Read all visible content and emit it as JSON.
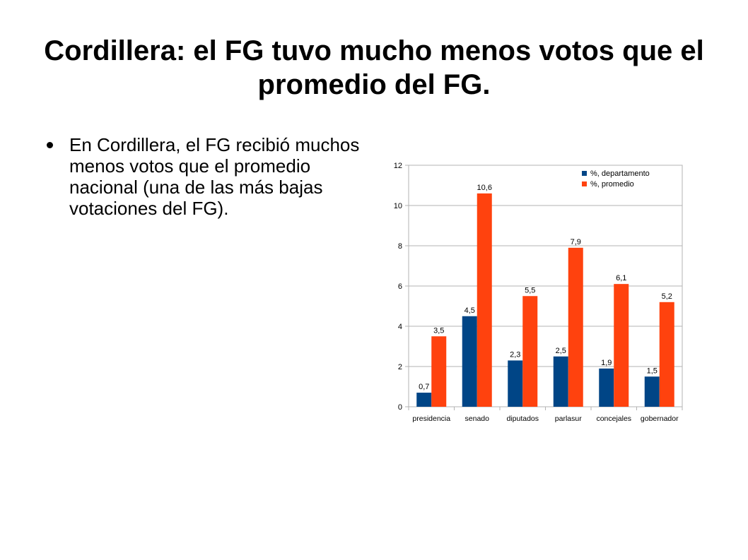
{
  "slide": {
    "title": "Cordillera: el FG tuvo mucho menos votos que el promedio del FG.",
    "bullets": [
      "En Cordillera, el FG recibió muchos menos votos que el promedio nacional (una de las más bajas votaciones del FG)."
    ]
  },
  "chart_data": {
    "type": "bar",
    "title": "",
    "xlabel": "",
    "ylabel": "",
    "categories": [
      "presidencia",
      "senado",
      "diputados",
      "parlasur",
      "concejales",
      "gobernador"
    ],
    "series": [
      {
        "name": "%, departamento",
        "color": "#004586",
        "values": [
          0.7,
          4.5,
          2.3,
          2.5,
          1.9,
          1.5
        ],
        "labels": [
          "0,7",
          "4,5",
          "2,3",
          "2,5",
          "1,9",
          "1,5"
        ]
      },
      {
        "name": "%, promedio",
        "color": "#ff420e",
        "values": [
          3.5,
          10.6,
          5.5,
          7.9,
          6.1,
          5.2
        ],
        "labels": [
          "3,5",
          "10,6",
          "5,5",
          "7,9",
          "6,1",
          "5,2"
        ]
      }
    ],
    "ylim": [
      0,
      12
    ],
    "yticks": [
      0,
      2,
      4,
      6,
      8,
      10,
      12
    ],
    "grid": true,
    "legend": "top-right"
  }
}
